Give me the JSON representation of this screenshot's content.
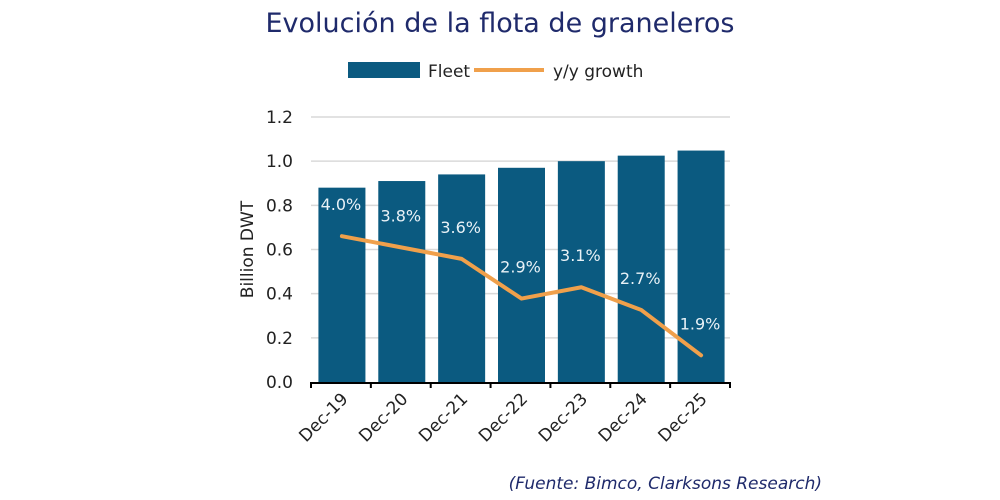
{
  "chart_data": {
    "type": "bar",
    "title": "Evolución de la flota de graneleros",
    "ylabel": "Billion DWT",
    "xlabel": "",
    "ylim": [
      0,
      1.2
    ],
    "yticks": [
      "0.0",
      "0.2",
      "0.4",
      "0.6",
      "0.8",
      "1.0",
      "1.2"
    ],
    "categories": [
      "Dec-19",
      "Dec-20",
      "Dec-21",
      "Dec-22",
      "Dec-23",
      "Dec-24",
      "Dec-25"
    ],
    "series": [
      {
        "name": "Fleet",
        "type": "bar",
        "axis": "primary",
        "color": "#0b5a80",
        "values": [
          0.88,
          0.91,
          0.94,
          0.97,
          1.0,
          1.025,
          1.048
        ]
      },
      {
        "name": "y/y growth",
        "type": "line",
        "axis": "secondary",
        "color": "#f0a04b",
        "unit": "%",
        "values": [
          4.0,
          3.8,
          3.6,
          2.9,
          3.1,
          2.7,
          1.9
        ],
        "labels": [
          "4.0%",
          "3.8%",
          "3.6%",
          "2.9%",
          "3.1%",
          "2.7%",
          "1.9%"
        ]
      }
    ],
    "y2lim": [
      1.43,
      6.1
    ],
    "y2_visible": false,
    "grid": true,
    "legend": "top"
  },
  "source": "(Fuente: Bimco, Clarksons Research)"
}
